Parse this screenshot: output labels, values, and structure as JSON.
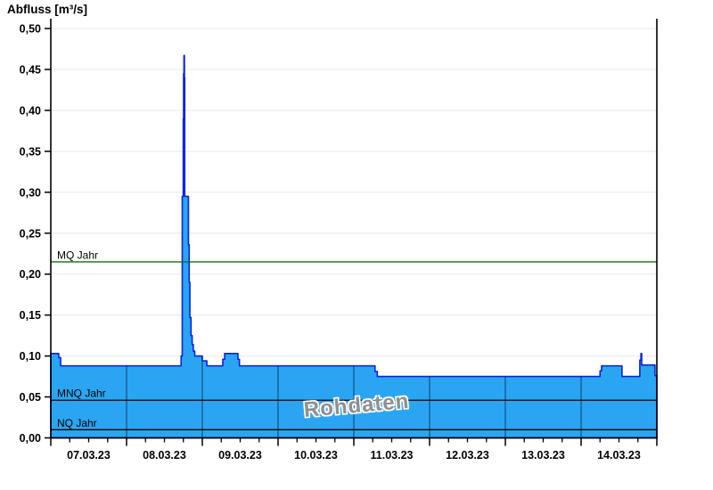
{
  "title": "Abfluss [m³/s]",
  "watermark": "Rohdaten",
  "chart_data": {
    "type": "area",
    "title": "Abfluss [m³/s]",
    "ylabel": "Abfluss [m³/s]",
    "xlabel": "",
    "x_axis": {
      "note": "x values are days since 07.03.23 00:00",
      "range_days": [
        0,
        8
      ],
      "tick_labels": [
        "07.03.23",
        "08.03.23",
        "09.03.23",
        "10.03.23",
        "11.03.23",
        "12.03.23",
        "13.03.23",
        "14.03.23"
      ],
      "minor_ticks_per_day": 3
    },
    "y_axis": {
      "range": [
        0,
        0.5
      ],
      "tick_values": [
        0,
        0.05,
        0.1,
        0.15,
        0.2,
        0.25,
        0.3,
        0.35,
        0.4,
        0.45,
        0.5
      ],
      "tick_labels": [
        "0,00",
        "0,05",
        "0,10",
        "0,15",
        "0,20",
        "0,25",
        "0,30",
        "0,35",
        "0,40",
        "0,45",
        "0,50"
      ]
    },
    "series": [
      {
        "name": "Abfluss Rohdaten",
        "unit": "m³/s",
        "peak_value": 0.467,
        "peak_time_days": 1.76,
        "points": [
          [
            0.0,
            0.103
          ],
          [
            0.105,
            0.103
          ],
          [
            0.105,
            0.098
          ],
          [
            0.13,
            0.098
          ],
          [
            0.13,
            0.088
          ],
          [
            1.72,
            0.088
          ],
          [
            1.72,
            0.1
          ],
          [
            1.735,
            0.1
          ],
          [
            1.735,
            0.295
          ],
          [
            1.748,
            0.295
          ],
          [
            1.748,
            0.39
          ],
          [
            1.753,
            0.39
          ],
          [
            1.753,
            0.445
          ],
          [
            1.758,
            0.445
          ],
          [
            1.758,
            0.467
          ],
          [
            1.764,
            0.467
          ],
          [
            1.764,
            0.44
          ],
          [
            1.768,
            0.44
          ],
          [
            1.768,
            0.295
          ],
          [
            1.817,
            0.295
          ],
          [
            1.817,
            0.236
          ],
          [
            1.827,
            0.236
          ],
          [
            1.827,
            0.19
          ],
          [
            1.836,
            0.19
          ],
          [
            1.836,
            0.147
          ],
          [
            1.851,
            0.147
          ],
          [
            1.851,
            0.125
          ],
          [
            1.866,
            0.125
          ],
          [
            1.866,
            0.114
          ],
          [
            1.881,
            0.114
          ],
          [
            1.881,
            0.106
          ],
          [
            1.9,
            0.106
          ],
          [
            1.9,
            0.1
          ],
          [
            2.0,
            0.1
          ],
          [
            2.0,
            0.094
          ],
          [
            2.06,
            0.094
          ],
          [
            2.06,
            0.088
          ],
          [
            2.27,
            0.088
          ],
          [
            2.27,
            0.096
          ],
          [
            2.295,
            0.096
          ],
          [
            2.295,
            0.103
          ],
          [
            2.47,
            0.103
          ],
          [
            2.47,
            0.096
          ],
          [
            2.49,
            0.096
          ],
          [
            2.49,
            0.088
          ],
          [
            4.28,
            0.088
          ],
          [
            4.28,
            0.081
          ],
          [
            4.31,
            0.081
          ],
          [
            4.31,
            0.075
          ],
          [
            7.25,
            0.075
          ],
          [
            7.25,
            0.082
          ],
          [
            7.27,
            0.082
          ],
          [
            7.27,
            0.088
          ],
          [
            7.54,
            0.088
          ],
          [
            7.54,
            0.075
          ],
          [
            7.775,
            0.075
          ],
          [
            7.775,
            0.095
          ],
          [
            7.79,
            0.095
          ],
          [
            7.79,
            0.103
          ],
          [
            7.8,
            0.103
          ],
          [
            7.8,
            0.089
          ],
          [
            7.975,
            0.089
          ],
          [
            7.975,
            0.076
          ],
          [
            8.0,
            0.076
          ]
        ]
      }
    ],
    "reference_lines": [
      {
        "label": "MQ Jahr",
        "value": 0.215,
        "color": "#0f720f"
      },
      {
        "label": "MNQ Jahr",
        "value": 0.046,
        "color": "#000000"
      },
      {
        "label": "NQ Jahr",
        "value": 0.01,
        "color": "#000000"
      }
    ],
    "annotations": [
      {
        "text": "Rohdaten",
        "style": "gray watermark with white halo, rotated"
      }
    ],
    "colors": {
      "area_fill": "#2aa5f2",
      "area_stroke": "#0a22dd",
      "mq_line": "#0f720f",
      "mnq_nq_line": "#000000",
      "grid": "#ececec",
      "day_separator": "rgba(0,10,40,0.55)",
      "axis": "#000000",
      "watermark_text": "#8f8f8f"
    },
    "grid": {
      "horizontal": true,
      "vertical_day_separators_inside_area": true,
      "legend": "none"
    }
  }
}
